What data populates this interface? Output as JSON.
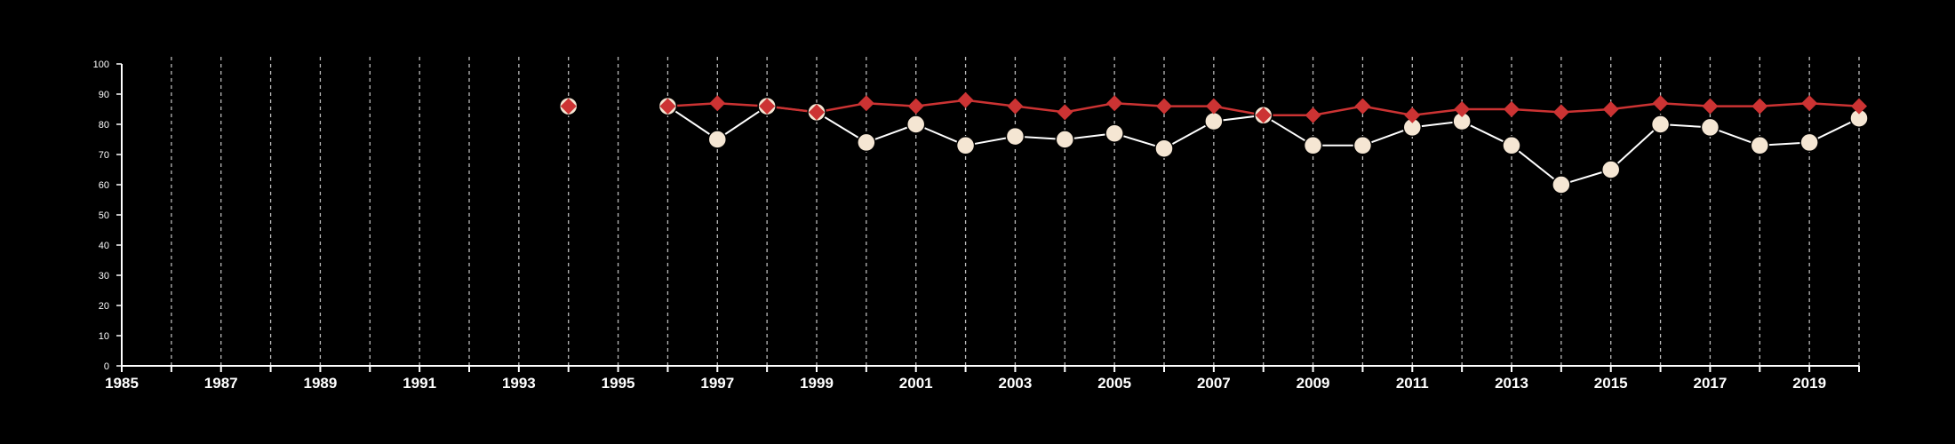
{
  "chart_data": {
    "type": "line",
    "title": "",
    "xlabel": "",
    "ylabel": "",
    "xlim": [
      1985,
      2020
    ],
    "ylim": [
      0,
      100
    ],
    "x_tick_labels": [
      1985,
      1987,
      1989,
      1991,
      1993,
      1995,
      1997,
      1999,
      2001,
      2003,
      2005,
      2007,
      2009,
      2011,
      2013,
      2015,
      2017,
      2019
    ],
    "y_tick_labels": [
      0,
      10,
      20,
      30,
      40,
      50,
      60,
      70,
      80,
      90,
      100
    ],
    "vertical_gridlines_years": [
      1986,
      1987,
      1988,
      1989,
      1990,
      1991,
      1992,
      1993,
      1994,
      1995,
      1996,
      1997,
      1998,
      1999,
      2000,
      2001,
      2002,
      2003,
      2004,
      2005,
      2006,
      2007,
      2008,
      2009,
      2010,
      2011,
      2012,
      2013,
      2014,
      2015,
      2016,
      2017,
      2018,
      2019,
      2020
    ],
    "grid": "vertical dashed",
    "legend": "none",
    "colors": {
      "background": "#000000",
      "axis": "#ffffff",
      "grid": "#bbbbbb",
      "series_a": "#ffffff",
      "series_a_marker": "#f5e6d3",
      "series_b": "#cc3333"
    },
    "series": [
      {
        "marker": "circle",
        "x": [
          1994,
          1996,
          1997,
          1998,
          1999,
          2000,
          2001,
          2002,
          2003,
          2004,
          2005,
          2006,
          2007,
          2008,
          2009,
          2010,
          2011,
          2012,
          2013,
          2014,
          2015,
          2016,
          2017,
          2018,
          2019,
          2020
        ],
        "values": [
          86,
          86,
          75,
          86,
          84,
          74,
          80,
          73,
          76,
          75,
          77,
          72,
          81,
          83,
          73,
          73,
          79,
          81,
          73,
          60,
          65,
          80,
          79,
          73,
          74,
          82
        ]
      },
      {
        "marker": "diamond",
        "x": [
          1994,
          1996,
          1997,
          1998,
          1999,
          2000,
          2001,
          2002,
          2003,
          2004,
          2005,
          2006,
          2007,
          2008,
          2009,
          2010,
          2011,
          2012,
          2013,
          2014,
          2015,
          2016,
          2017,
          2018,
          2019,
          2020
        ],
        "values": [
          86,
          86,
          87,
          86,
          84,
          87,
          86,
          88,
          86,
          84,
          87,
          86,
          86,
          83,
          83,
          86,
          83,
          85,
          85,
          84,
          85,
          87,
          86,
          86,
          87,
          86
        ]
      }
    ]
  }
}
